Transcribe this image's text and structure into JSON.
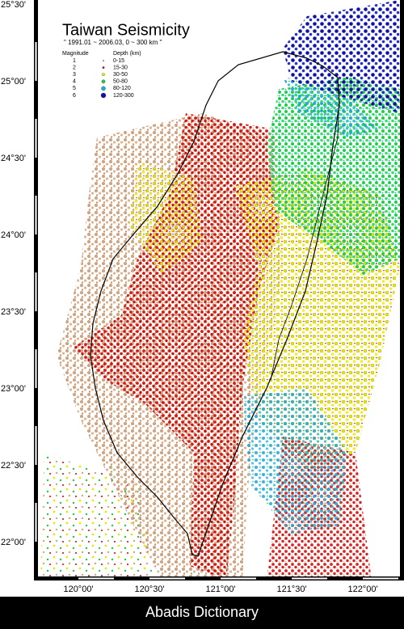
{
  "map": {
    "title": "Taiwan Seismicity",
    "subtitle": "\" 1991.01 ~ 2006.03, 0 ~ 300 km \"",
    "legend": {
      "magnitude_header": "Magnitude",
      "depth_header": "Depth (km)",
      "rows": [
        {
          "magnitude": 1,
          "depth": "0-15",
          "color": "#d9a57a"
        },
        {
          "magnitude": 2,
          "depth": "15-30",
          "color": "#d40000"
        },
        {
          "magnitude": 3,
          "depth": "30-50",
          "color": "#e8e800"
        },
        {
          "magnitude": 4,
          "depth": "50-80",
          "color": "#22cc44"
        },
        {
          "magnitude": 5,
          "depth": "80-120",
          "color": "#22aadd"
        },
        {
          "magnitude": 6,
          "depth": "120-300",
          "color": "#1111aa"
        }
      ]
    },
    "lat_labels": [
      "25°30'",
      "25°00'",
      "24°30'",
      "24°00'",
      "23°30'",
      "23°00'",
      "22°30'",
      "22°00'"
    ],
    "lon_labels": [
      "120°00'",
      "120°30'",
      "121°00'",
      "121°30'",
      "122°00'"
    ]
  },
  "footer": "Abadis Dictionary"
}
